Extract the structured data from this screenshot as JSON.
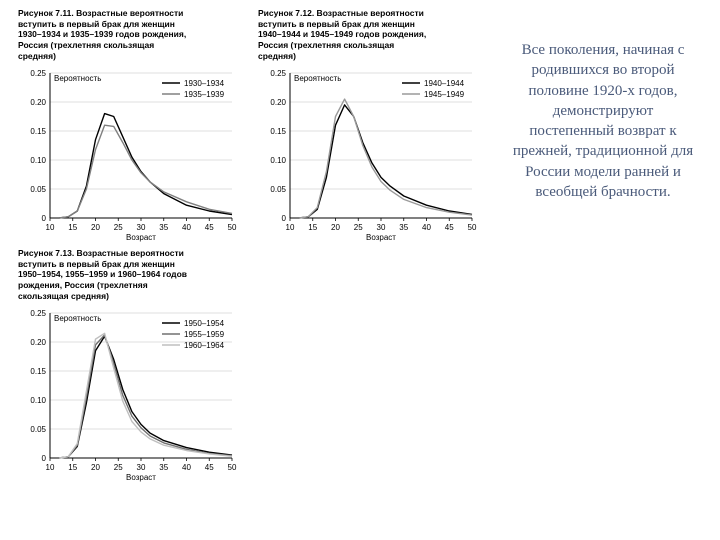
{
  "background_color": "#ffffff",
  "side_text": "Все поколения, начиная с родившихся во второй половине 1920-х годов, демонстрируют постепенный возврат к прежней, традиционной для России модели ранней и всеобщей брачности.",
  "side_text_color": "#4a5a7a",
  "side_text_fontfamily": "Georgia, serif",
  "side_text_fontsize": 15,
  "x_axis": {
    "label": "Возраст",
    "label_fontsize": 8,
    "min": 10,
    "max": 50,
    "ticks": [
      10,
      15,
      20,
      25,
      30,
      35,
      40,
      45,
      50
    ]
  },
  "y_axis": {
    "label": "Вероятность",
    "label_fontsize": 8,
    "min": 0,
    "max": 0.25,
    "ticks": [
      0,
      0.05,
      0.1,
      0.15,
      0.2,
      0.25
    ],
    "tick_labels": [
      "0",
      "0.05",
      "0.10",
      "0.15",
      "0.20",
      "0.25"
    ]
  },
  "grid_color": "#bfbfbf",
  "axis_color": "#000000",
  "plot_bg": "#ffffff",
  "line_width": 1.4,
  "charts": [
    {
      "id": "chart-711",
      "title": "Рисунок 7.11. Возрастные вероятности\nвступить в первый брак для женщин\n1930–1934 и 1935–1939 годов рождения,\nРоссия (трехлетняя скользящая\nсредняя)",
      "series": [
        {
          "name": "1930–1934",
          "color": "#000000",
          "x": [
            12,
            14,
            16,
            18,
            20,
            22,
            24,
            26,
            28,
            30,
            32,
            35,
            40,
            45,
            50
          ],
          "y": [
            0,
            0.002,
            0.012,
            0.055,
            0.135,
            0.18,
            0.175,
            0.14,
            0.105,
            0.08,
            0.062,
            0.042,
            0.022,
            0.012,
            0.006
          ]
        },
        {
          "name": "1935–1939",
          "color": "#808080",
          "x": [
            12,
            14,
            16,
            18,
            20,
            22,
            24,
            26,
            28,
            30,
            32,
            35,
            40,
            45,
            50
          ],
          "y": [
            0,
            0.002,
            0.012,
            0.05,
            0.118,
            0.16,
            0.158,
            0.13,
            0.1,
            0.078,
            0.062,
            0.045,
            0.028,
            0.015,
            0.008
          ]
        }
      ]
    },
    {
      "id": "chart-712",
      "title": "Рисунок 7.12. Возрастные вероятности\nвступить в первый брак для женщин\n1940–1944 и 1945–1949 годов рождения,\nРоссия (трехлетняя скользящая\nсредняя)",
      "series": [
        {
          "name": "1940–1944",
          "color": "#000000",
          "x": [
            12,
            14,
            16,
            18,
            20,
            22,
            24,
            26,
            28,
            30,
            32,
            35,
            40,
            45,
            50
          ],
          "y": [
            0,
            0.002,
            0.015,
            0.07,
            0.16,
            0.195,
            0.175,
            0.13,
            0.095,
            0.07,
            0.055,
            0.038,
            0.022,
            0.012,
            0.006
          ]
        },
        {
          "name": "1945–1949",
          "color": "#9a9a9a",
          "x": [
            12,
            14,
            16,
            18,
            20,
            22,
            24,
            26,
            28,
            30,
            32,
            35,
            40,
            45,
            50
          ],
          "y": [
            0,
            0.002,
            0.018,
            0.08,
            0.175,
            0.205,
            0.175,
            0.125,
            0.088,
            0.063,
            0.048,
            0.032,
            0.018,
            0.01,
            0.005
          ]
        }
      ]
    },
    {
      "id": "chart-713",
      "title": "Рисунок 7.13. Возрастные вероятности\nвступить в первый брак для женщин\n1950–1954, 1955–1959 и 1960–1964 годов\nрождения, Россия (трехлетняя\nскользящая средняя)",
      "series": [
        {
          "name": "1950–1954",
          "color": "#000000",
          "x": [
            12,
            14,
            16,
            18,
            20,
            22,
            24,
            26,
            28,
            30,
            32,
            35,
            40,
            45,
            50
          ],
          "y": [
            0,
            0.002,
            0.02,
            0.095,
            0.185,
            0.21,
            0.17,
            0.118,
            0.08,
            0.058,
            0.043,
            0.03,
            0.018,
            0.01,
            0.005
          ]
        },
        {
          "name": "1955–1959",
          "color": "#707070",
          "x": [
            12,
            14,
            16,
            18,
            20,
            22,
            24,
            26,
            28,
            30,
            32,
            35,
            40,
            45,
            50
          ],
          "y": [
            0,
            0.002,
            0.022,
            0.105,
            0.195,
            0.212,
            0.163,
            0.108,
            0.072,
            0.052,
            0.038,
            0.026,
            0.015,
            0.008,
            0.004
          ]
        },
        {
          "name": "1960–1964",
          "color": "#bfbfbf",
          "x": [
            12,
            14,
            16,
            18,
            20,
            22,
            24,
            26,
            28,
            30,
            32,
            35,
            40,
            45,
            50
          ],
          "y": [
            0,
            0.002,
            0.025,
            0.115,
            0.205,
            0.215,
            0.155,
            0.098,
            0.063,
            0.045,
            0.033,
            0.022,
            0.013,
            0.007,
            0.003
          ]
        }
      ]
    }
  ]
}
